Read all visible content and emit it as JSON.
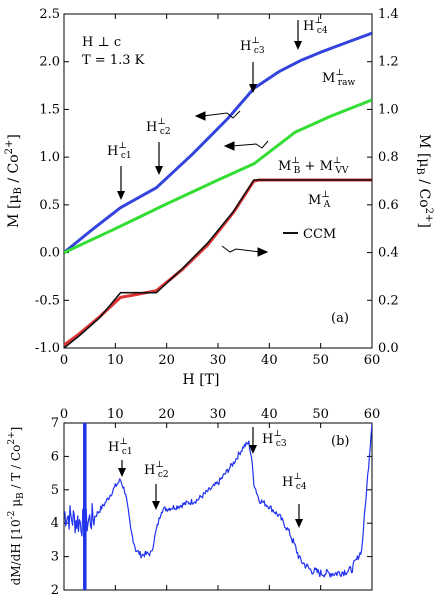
{
  "chart_data": [
    {
      "type": "line",
      "panel_label": "(a)",
      "xlabel": "H [T]",
      "ylabel_left": "M [μ_B / Co^2+]",
      "ylabel_right": "M [μ_B / Co^2+]",
      "xlim": [
        0,
        60
      ],
      "ylim_left": [
        -1.0,
        2.5
      ],
      "ylim_right": [
        0.0,
        1.4
      ],
      "x_ticks": [
        "0",
        "10",
        "20",
        "30",
        "40",
        "50",
        "60"
      ],
      "y_ticks_left": [
        "-1.0",
        "-0.5",
        "0.0",
        "0.5",
        "1.0",
        "1.5",
        "2.0",
        "2.5"
      ],
      "y_ticks_right": [
        "0.0",
        "0.2",
        "0.4",
        "0.6",
        "0.8",
        "1.0",
        "1.2",
        "1.4"
      ],
      "conditions": [
        "H ⊥ c",
        "T = 1.3 K"
      ],
      "legend": [
        {
          "label": "CCM",
          "color": "#111111"
        }
      ],
      "series": [
        {
          "name": "M_raw^⊥",
          "axis": "left",
          "color": "#3344dd",
          "x": [
            0,
            5,
            11,
            18,
            25,
            32,
            37,
            42,
            46,
            50,
            55,
            60
          ],
          "y": [
            0.0,
            0.22,
            0.47,
            0.68,
            1.03,
            1.41,
            1.72,
            1.9,
            2.01,
            2.1,
            2.2,
            2.3
          ]
        },
        {
          "name": "M_B^⊥ + M_VV^⊥",
          "axis": "left",
          "color": "#33dd33",
          "x": [
            0,
            10,
            20,
            30,
            37,
            45,
            52,
            60
          ],
          "y": [
            0.0,
            0.25,
            0.51,
            0.76,
            0.93,
            1.26,
            1.43,
            1.6
          ]
        },
        {
          "name": "M_A^⊥",
          "axis": "left",
          "color": "#dd3333",
          "x": [
            0,
            3,
            7,
            11,
            14,
            18,
            23,
            28,
            33,
            37,
            38,
            45,
            52,
            60
          ],
          "y": [
            -0.97,
            -0.85,
            -0.67,
            -0.47,
            -0.44,
            -0.4,
            -0.18,
            0.08,
            0.42,
            0.75,
            0.76,
            0.76,
            0.76,
            0.76
          ]
        },
        {
          "name": "CCM",
          "axis": "left",
          "color": "#111111",
          "x": [
            0,
            3,
            7,
            11,
            18,
            23,
            28,
            33,
            37,
            45,
            52,
            60
          ],
          "y": [
            -1.0,
            -0.87,
            -0.68,
            -0.42,
            -0.42,
            -0.17,
            0.1,
            0.43,
            0.76,
            0.76,
            0.76,
            0.76
          ]
        }
      ],
      "annotations": [
        {
          "text": "H_c1^⊥",
          "x": 11
        },
        {
          "text": "H_c2^⊥",
          "x": 18
        },
        {
          "text": "H_c3^⊥",
          "x": 36
        },
        {
          "text": "H_c4^⊥",
          "x": 46
        }
      ]
    },
    {
      "type": "line",
      "panel_label": "(b)",
      "ylabel": "dM/dH [10^-2 μ_B / T / Co^2+]",
      "xlim": [
        0,
        60
      ],
      "ylim": [
        2,
        7
      ],
      "x_ticks": [
        "0",
        "10",
        "20",
        "30",
        "40",
        "50",
        "60"
      ],
      "y_ticks": [
        "2",
        "3",
        "4",
        "5",
        "6",
        "7"
      ],
      "series": [
        {
          "name": "dM/dH",
          "color": "#2233ee",
          "x": [
            0,
            2,
            4,
            6,
            8,
            10,
            11,
            12,
            13,
            14,
            15,
            17,
            18,
            19,
            22,
            26,
            30,
            33,
            35,
            36,
            36.5,
            37,
            38,
            40,
            42,
            44,
            46,
            48,
            50,
            53,
            56,
            58,
            60
          ],
          "y": [
            4.3,
            4.1,
            4.0,
            4.2,
            4.6,
            5.1,
            5.3,
            4.9,
            3.8,
            3.2,
            3.05,
            3.1,
            3.8,
            4.4,
            4.5,
            4.7,
            5.2,
            5.8,
            6.3,
            6.4,
            6.0,
            5.2,
            4.7,
            4.5,
            4.2,
            3.7,
            2.9,
            2.6,
            2.5,
            2.5,
            2.6,
            3.2,
            7.0
          ]
        }
      ],
      "annotations": [
        {
          "text": "H_c1^⊥",
          "x": 11
        },
        {
          "text": "H_c2^⊥",
          "x": 18
        },
        {
          "text": "H_c3^⊥",
          "x": 36
        },
        {
          "text": "H_c4^⊥",
          "x": 46
        }
      ]
    }
  ]
}
